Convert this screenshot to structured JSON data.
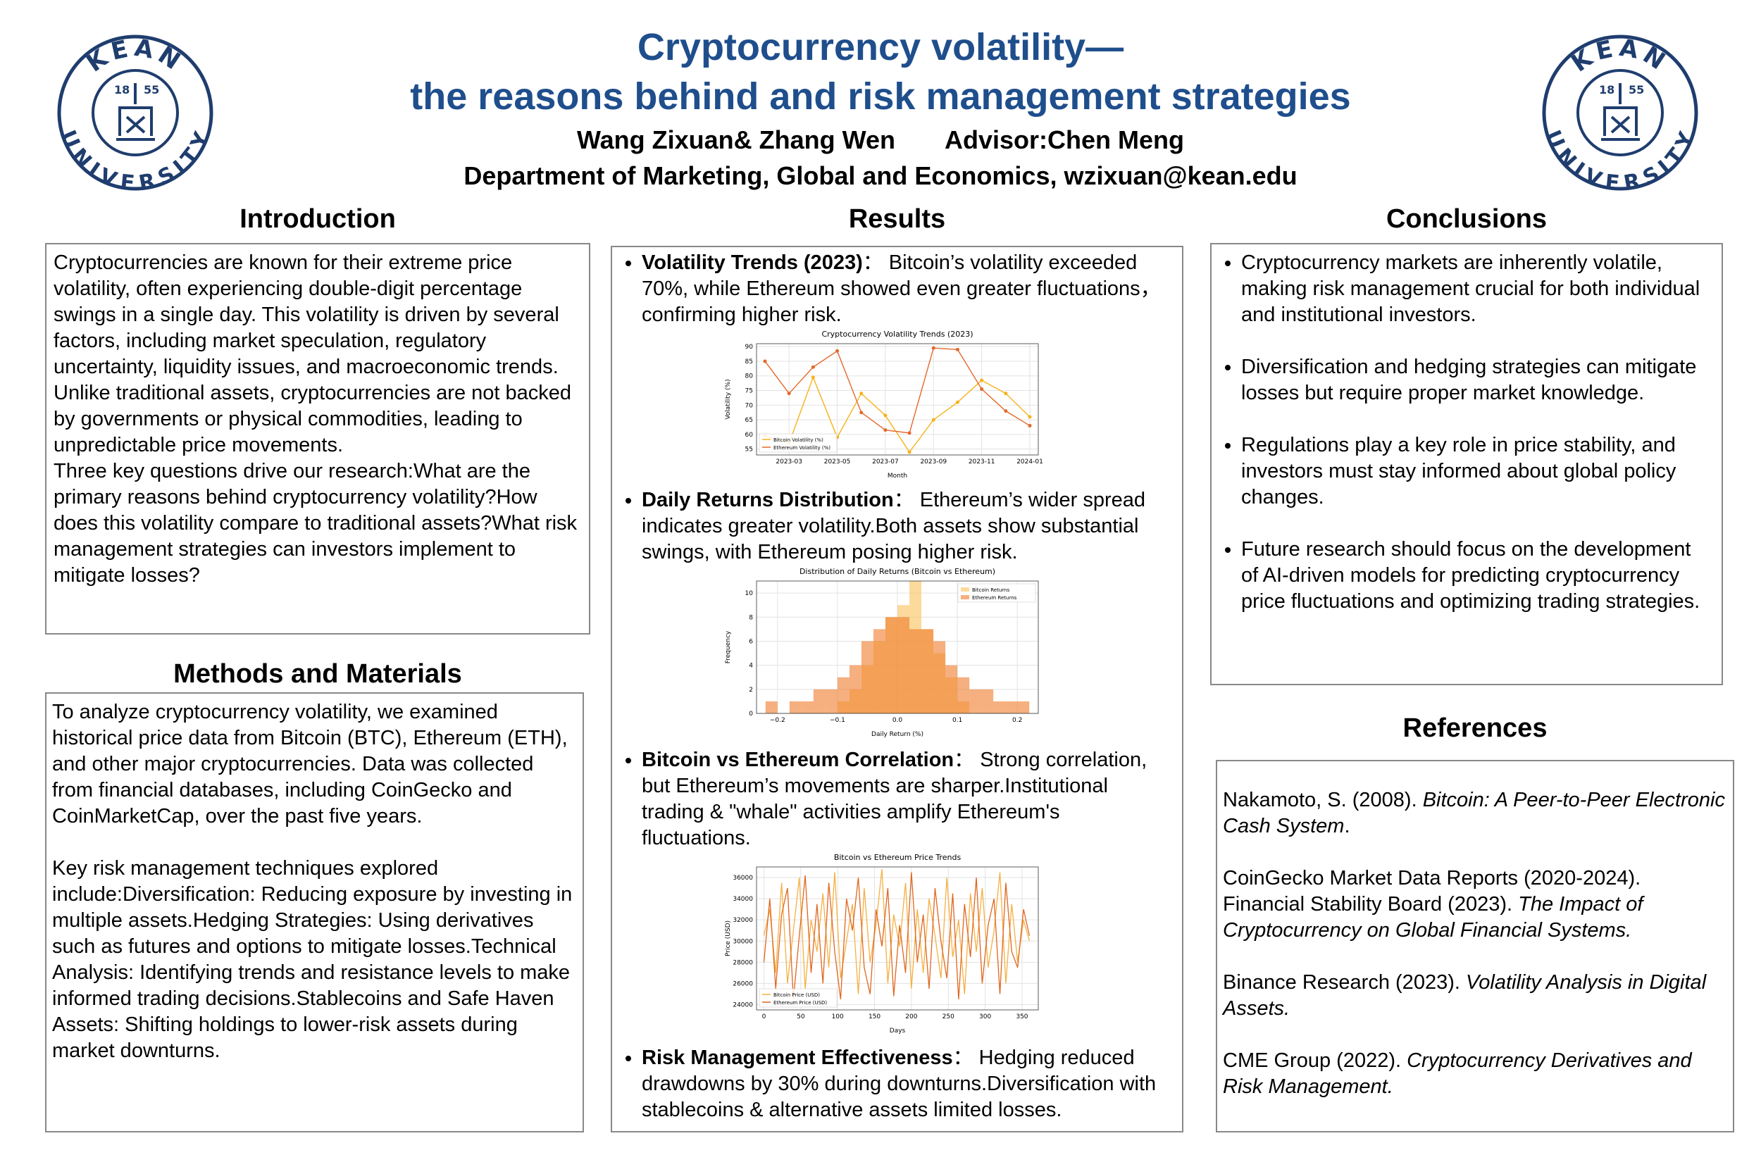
{
  "header": {
    "title_line1": "Cryptocurrency volatility—",
    "title_line2": "the reasons behind and risk management strategies",
    "authors": "Wang Zixuan& Zhang Wen",
    "advisor": "Advisor:Chen Meng",
    "department": "Department of Marketing, Global and Economics, wzixuan@kean.edu"
  },
  "logo": {
    "top": "KEAN",
    "bottom": "UNIVERSITY",
    "year_left": "18",
    "year_right": "55"
  },
  "introduction": {
    "heading": "Introduction",
    "paragraphs": [
      "Cryptocurrencies are known for their extreme price volatility, often experiencing double-digit percentage swings in a single day. This volatility is driven by several factors, including market speculation, regulatory uncertainty, liquidity issues, and macroeconomic trends. Unlike traditional assets, cryptocurrencies are not backed by governments or physical commodities, leading to unpredictable price movements.",
      "Three key questions drive our research:What are the primary reasons behind cryptocurrency volatility?How does this volatility compare to traditional assets?What risk management strategies can investors implement to mitigate losses?"
    ]
  },
  "methods": {
    "heading": "Methods and Materials",
    "paragraphs": [
      "To analyze cryptocurrency volatility, we examined historical price data from Bitcoin (BTC), Ethereum (ETH), and other major cryptocurrencies. Data was collected from financial databases, including CoinGecko and CoinMarketCap, over the past five years.",
      "Key risk management techniques explored include:Diversification: Reducing exposure by investing in multiple assets.Hedging Strategies: Using derivatives such as futures and options to mitigate losses.Technical Analysis: Identifying trends and resistance levels to make informed trading decisions.Stablecoins and Safe Haven Assets: Shifting holdings to lower-risk assets during market downturns."
    ]
  },
  "results": {
    "heading": "Results",
    "items": [
      {
        "label": "Volatility Trends (2023)",
        "text": "： Bitcoin’s volatility exceeded 70%, while Ethereum showed even greater fluctuations， confirming higher risk."
      },
      {
        "label": "Daily Returns Distribution",
        "text": "： Ethereum’s wider spread indicates greater volatility.Both assets show substantial swings, with Ethereum posing higher risk."
      },
      {
        "label": "Bitcoin vs Ethereum Correlation",
        "text": "： Strong correlation, but Ethereum’s movements are sharper.Institutional trading & \"whale\" activities amplify Ethereum's fluctuations."
      },
      {
        "label": "Risk Management Effectiveness",
        "text": "： Hedging reduced drawdowns by 30% during downturns.Diversification with stablecoins & alternative assets limited losses."
      }
    ]
  },
  "chart_data": [
    {
      "type": "line",
      "title": "Cryptocurrency Volatility Trends (2023)",
      "x_label": "Month",
      "y_label": "Volatility (%)",
      "categories": [
        "2023-02",
        "2023-03",
        "2023-04",
        "2023-05",
        "2023-06",
        "2023-07",
        "2023-08",
        "2023-09",
        "2023-10",
        "2023-11",
        "2023-12",
        "2024-01"
      ],
      "xticks": [
        "2023-03",
        "2023-05",
        "2023-07",
        "2023-09",
        "2023-11",
        "2024-01"
      ],
      "ylim": [
        53,
        91
      ],
      "yticks": [
        55,
        60,
        65,
        70,
        75,
        80,
        85,
        90
      ],
      "grid": true,
      "markers": true,
      "legend": "lower left",
      "series": [
        {
          "name": "Bitcoin Volatility (%)",
          "color": "#f7b21b",
          "values": [
            59.5,
            57,
            79.5,
            59,
            74,
            66.5,
            54,
            65,
            71,
            78.5,
            74,
            66
          ]
        },
        {
          "name": "Ethereum Volatility (%)",
          "color": "#e3692b",
          "values": [
            85,
            74,
            83,
            88.5,
            67.5,
            61.5,
            60.5,
            89.5,
            89,
            75.5,
            68,
            63
          ]
        }
      ]
    },
    {
      "type": "histogram",
      "title": "Distribution of Daily Returns (Bitcoin vs Ethereum)",
      "x_label": "Daily Return (%)",
      "y_label": "Frequency",
      "bins": [
        -0.22,
        -0.2,
        -0.18,
        -0.16,
        -0.14,
        -0.12,
        -0.1,
        -0.08,
        -0.06,
        -0.04,
        -0.02,
        0,
        0.02,
        0.04,
        0.06,
        0.08,
        0.1,
        0.12,
        0.14,
        0.16,
        0.18,
        0.2,
        0.22
      ],
      "xlim": [
        -0.235,
        0.235
      ],
      "xticks": [
        {
          "value": -0.2,
          "label": "−0.2"
        },
        {
          "value": -0.1,
          "label": "−0.1"
        },
        {
          "value": 0,
          "label": "0.0"
        },
        0.1,
        0.2
      ],
      "ylim": [
        0,
        11
      ],
      "yticks": [
        0,
        2,
        4,
        6,
        8,
        10
      ],
      "grid": true,
      "legend": "upper right",
      "series": [
        {
          "name": "Bitcoin Returns",
          "color": "#f9c25a",
          "values": [
            0,
            0,
            0,
            0,
            0,
            0,
            1,
            2,
            4,
            6,
            8,
            9,
            11,
            7,
            5,
            3,
            1,
            0,
            0,
            0,
            0,
            0
          ]
        },
        {
          "name": "Ethereum Returns",
          "color": "#f07a2a",
          "values": [
            1,
            0,
            1,
            1,
            2,
            2,
            3,
            4,
            6,
            7,
            8,
            8,
            7,
            7,
            6,
            4,
            3,
            2,
            2,
            1,
            1,
            1
          ]
        }
      ]
    },
    {
      "type": "line",
      "title": "Bitcoin vs Ethereum Price Trends",
      "x_label": "Days",
      "y_label": "Price (USD)",
      "x": [
        0,
        8,
        16,
        24,
        32,
        40,
        48,
        56,
        64,
        72,
        80,
        88,
        96,
        104,
        112,
        120,
        128,
        136,
        144,
        152,
        160,
        168,
        176,
        184,
        192,
        200,
        208,
        216,
        224,
        232,
        240,
        248,
        256,
        264,
        272,
        280,
        288,
        296,
        304,
        312,
        320,
        328,
        336,
        344,
        352,
        360
      ],
      "xlim": [
        -10,
        372
      ],
      "xticks": [
        0,
        50,
        100,
        150,
        200,
        250,
        300,
        350
      ],
      "ylim": [
        23500,
        37000
      ],
      "yticks": [
        24000,
        26000,
        28000,
        30000,
        32000,
        34000,
        36000
      ],
      "grid": true,
      "markers": false,
      "legend": "lower left",
      "series": [
        {
          "name": "Bitcoin Price (USD)",
          "color": "#f5b041",
          "values": [
            30500,
            33000,
            27000,
            35500,
            26000,
            31000,
            36000,
            25500,
            32000,
            29000,
            34500,
            27500,
            36500,
            26500,
            30000,
            33500,
            25000,
            35000,
            28000,
            31500,
            36800,
            26000,
            32500,
            29500,
            35500,
            25500,
            33000,
            27000,
            34000,
            30500,
            26500,
            36000,
            28500,
            32000,
            25000,
            34500,
            29000,
            35000,
            27500,
            31000,
            36500,
            26000,
            33500,
            28000,
            32000,
            30000
          ]
        },
        {
          "name": "Ethereum Price (USD)",
          "color": "#e0661f",
          "values": [
            28000,
            34000,
            25500,
            32500,
            35000,
            24500,
            30500,
            36200,
            27000,
            33500,
            26000,
            35500,
            29000,
            24500,
            34000,
            31000,
            36000,
            27500,
            25000,
            33000,
            29500,
            35000,
            24800,
            31500,
            27000,
            36500,
            28000,
            32500,
            25500,
            35000,
            30000,
            26500,
            34500,
            24500,
            33500,
            28500,
            36000,
            26000,
            31500,
            34000,
            25000,
            35500,
            29000,
            27500,
            33000,
            30500
          ]
        }
      ]
    }
  ],
  "conclusions": {
    "heading": "Conclusions",
    "items": [
      "Cryptocurrency markets are inherently volatile, making risk management crucial for both individual and institutional investors.",
      "Diversification and hedging strategies can mitigate losses but require proper market knowledge.",
      "Regulations play a key role in price stability, and investors must stay informed about global policy changes.",
      "Future research should focus on the development of AI-driven models for predicting cryptocurrency price fluctuations and optimizing trading strategies."
    ]
  },
  "references": {
    "heading": "References",
    "items": [
      {
        "parts": [
          {
            "text": "Nakamoto, S. (2008). ",
            "italic": false
          },
          {
            "text": "Bitcoin: A Peer-to-Peer Electronic Cash System",
            "italic": true
          },
          {
            "text": ".",
            "italic": false
          }
        ]
      },
      {
        "parts": [
          {
            "text": "CoinGecko Market Data Reports (2020-2024). Financial Stability Board (2023). ",
            "italic": false
          },
          {
            "text": "The Impact of Cryptocurrency on Global Financial Systems.",
            "italic": true
          }
        ]
      },
      {
        "parts": [
          {
            "text": "Binance Research (2023). ",
            "italic": false
          },
          {
            "text": "Volatility Analysis in Digital Assets.",
            "italic": true
          }
        ]
      },
      {
        "parts": [
          {
            "text": "CME Group (2022). ",
            "italic": false
          },
          {
            "text": "Cryptocurrency Derivatives and Risk Management.",
            "italic": true
          }
        ]
      }
    ]
  }
}
